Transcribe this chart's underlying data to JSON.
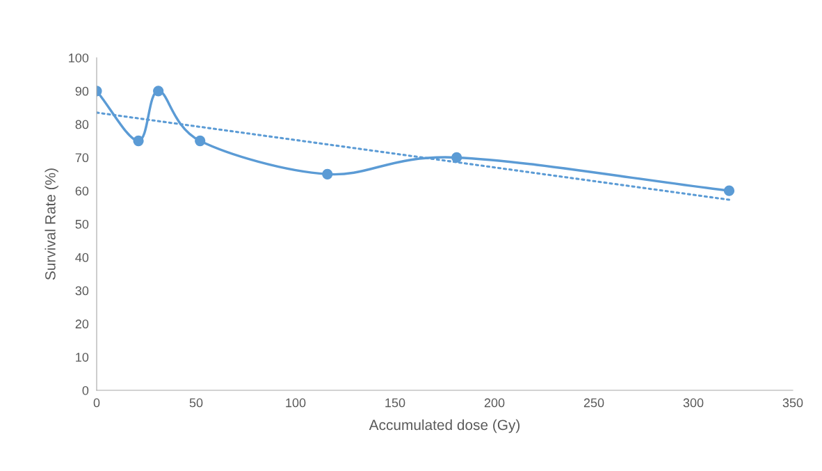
{
  "chart_data": {
    "type": "line",
    "xlabel": "Accumulated dose (Gy)",
    "ylabel": "Survival Rate (%)",
    "xlim": [
      0,
      350
    ],
    "xticks": [
      0,
      50,
      100,
      150,
      200,
      250,
      300,
      350
    ],
    "ylim": [
      0,
      100
    ],
    "yticks": [
      0,
      10,
      20,
      30,
      40,
      50,
      60,
      70,
      80,
      90,
      100
    ],
    "grid": false,
    "legend": false,
    "series": [
      {
        "color": "#5b9bd5",
        "marker": "circle",
        "line_style": "solid",
        "x": [
          0,
          21,
          31,
          52,
          116,
          181,
          318
        ],
        "values": [
          90,
          75,
          90,
          75,
          65,
          70,
          60
        ]
      },
      {
        "color": "#5b9bd5",
        "marker": "none",
        "line_style": "dotted",
        "x": [
          0,
          318
        ],
        "values": [
          83.5,
          57.3
        ]
      }
    ]
  }
}
